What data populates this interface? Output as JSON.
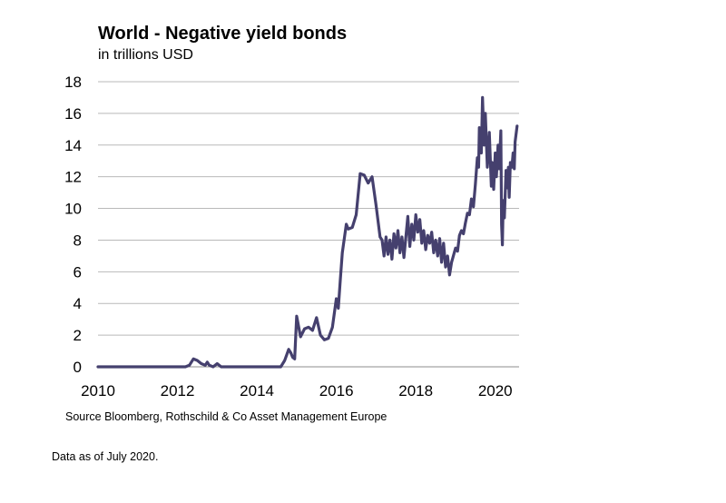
{
  "chart_data": {
    "type": "line",
    "title": "World - Negative yield bonds",
    "subtitle": "in trillions USD",
    "xlabel": "",
    "ylabel": "",
    "xlim": [
      2010,
      2020.6
    ],
    "ylim": [
      0,
      18
    ],
    "xticks": [
      2010,
      2012,
      2014,
      2016,
      2018,
      2020
    ],
    "yticks": [
      0,
      2,
      4,
      6,
      8,
      10,
      12,
      14,
      16,
      18
    ],
    "grid": "horizontal",
    "legend": "none",
    "series": [
      {
        "color": "#45406e",
        "points": [
          [
            2010.0,
            0
          ],
          [
            2012.2,
            0
          ],
          [
            2012.3,
            0.1
          ],
          [
            2012.4,
            0.5
          ],
          [
            2012.5,
            0.4
          ],
          [
            2012.6,
            0.2
          ],
          [
            2012.7,
            0.1
          ],
          [
            2012.75,
            0.3
          ],
          [
            2012.8,
            0.1
          ],
          [
            2012.9,
            0
          ],
          [
            2013.0,
            0.2
          ],
          [
            2013.1,
            0
          ],
          [
            2014.6,
            0
          ],
          [
            2014.7,
            0.4
          ],
          [
            2014.8,
            1.1
          ],
          [
            2014.85,
            0.9
          ],
          [
            2014.9,
            0.6
          ],
          [
            2014.95,
            0.5
          ],
          [
            2015.0,
            3.2
          ],
          [
            2015.1,
            1.9
          ],
          [
            2015.2,
            2.4
          ],
          [
            2015.3,
            2.5
          ],
          [
            2015.4,
            2.3
          ],
          [
            2015.5,
            3.1
          ],
          [
            2015.6,
            2.0
          ],
          [
            2015.7,
            1.7
          ],
          [
            2015.8,
            1.8
          ],
          [
            2015.9,
            2.5
          ],
          [
            2016.0,
            4.3
          ],
          [
            2016.05,
            3.7
          ],
          [
            2016.1,
            5.5
          ],
          [
            2016.15,
            7.2
          ],
          [
            2016.25,
            9.0
          ],
          [
            2016.3,
            8.7
          ],
          [
            2016.4,
            8.8
          ],
          [
            2016.5,
            9.6
          ],
          [
            2016.6,
            12.2
          ],
          [
            2016.7,
            12.1
          ],
          [
            2016.8,
            11.6
          ],
          [
            2016.9,
            12.0
          ],
          [
            2017.0,
            10.2
          ],
          [
            2017.1,
            8.2
          ],
          [
            2017.15,
            8.0
          ],
          [
            2017.2,
            7.0
          ],
          [
            2017.25,
            8.2
          ],
          [
            2017.3,
            7.1
          ],
          [
            2017.35,
            8.0
          ],
          [
            2017.4,
            6.8
          ],
          [
            2017.45,
            8.4
          ],
          [
            2017.5,
            7.5
          ],
          [
            2017.55,
            8.6
          ],
          [
            2017.6,
            7.2
          ],
          [
            2017.65,
            8.2
          ],
          [
            2017.7,
            6.9
          ],
          [
            2017.8,
            9.5
          ],
          [
            2017.85,
            7.6
          ],
          [
            2017.9,
            9.0
          ],
          [
            2017.95,
            8.0
          ],
          [
            2018.0,
            9.6
          ],
          [
            2018.05,
            8.5
          ],
          [
            2018.1,
            9.3
          ],
          [
            2018.15,
            7.8
          ],
          [
            2018.2,
            8.6
          ],
          [
            2018.25,
            7.4
          ],
          [
            2018.3,
            8.3
          ],
          [
            2018.35,
            7.8
          ],
          [
            2018.4,
            8.5
          ],
          [
            2018.45,
            7.2
          ],
          [
            2018.5,
            8.0
          ],
          [
            2018.55,
            7.0
          ],
          [
            2018.6,
            8.1
          ],
          [
            2018.65,
            6.6
          ],
          [
            2018.7,
            7.8
          ],
          [
            2018.75,
            6.3
          ],
          [
            2018.8,
            7.0
          ],
          [
            2018.85,
            5.8
          ],
          [
            2018.9,
            6.6
          ],
          [
            2019.0,
            7.5
          ],
          [
            2019.05,
            7.3
          ],
          [
            2019.1,
            8.3
          ],
          [
            2019.15,
            8.6
          ],
          [
            2019.2,
            8.4
          ],
          [
            2019.25,
            9.1
          ],
          [
            2019.3,
            9.7
          ],
          [
            2019.35,
            9.6
          ],
          [
            2019.4,
            10.6
          ],
          [
            2019.45,
            10.1
          ],
          [
            2019.5,
            11.5
          ],
          [
            2019.55,
            13.2
          ],
          [
            2019.58,
            12.6
          ],
          [
            2019.6,
            15.1
          ],
          [
            2019.65,
            13.5
          ],
          [
            2019.68,
            17.0
          ],
          [
            2019.72,
            14.0
          ],
          [
            2019.75,
            16.0
          ],
          [
            2019.8,
            12.6
          ],
          [
            2019.85,
            14.8
          ],
          [
            2019.9,
            11.4
          ],
          [
            2019.92,
            12.9
          ],
          [
            2019.96,
            11.2
          ],
          [
            2020.0,
            13.5
          ],
          [
            2020.03,
            12.0
          ],
          [
            2020.07,
            14.0
          ],
          [
            2020.1,
            12.5
          ],
          [
            2020.12,
            13.7
          ],
          [
            2020.14,
            14.9
          ],
          [
            2020.16,
            9.0
          ],
          [
            2020.18,
            7.7
          ],
          [
            2020.2,
            10.5
          ],
          [
            2020.23,
            9.4
          ],
          [
            2020.27,
            12.4
          ],
          [
            2020.3,
            11.3
          ],
          [
            2020.33,
            12.6
          ],
          [
            2020.35,
            10.7
          ],
          [
            2020.38,
            12.9
          ],
          [
            2020.42,
            12.6
          ],
          [
            2020.45,
            13.5
          ],
          [
            2020.48,
            12.5
          ],
          [
            2020.5,
            14.2
          ],
          [
            2020.55,
            15.2
          ]
        ]
      }
    ]
  },
  "source_note": "Source Bloomberg, Rothschild & Co Asset Management Europe",
  "footnote": "Data as of July 2020."
}
